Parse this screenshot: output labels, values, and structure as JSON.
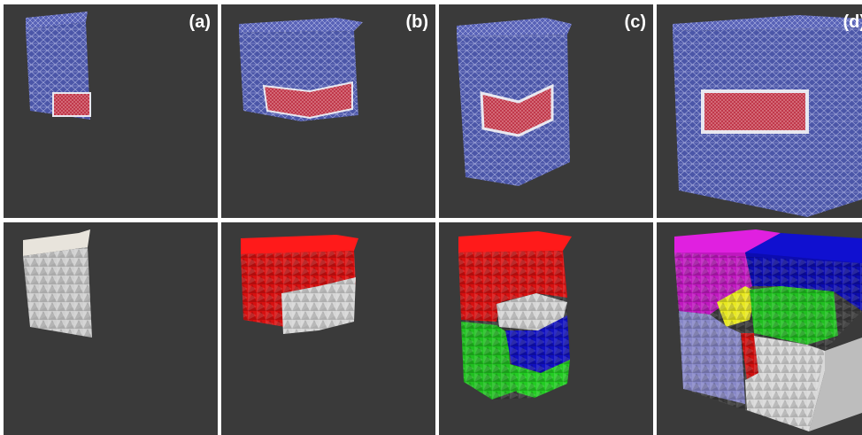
{
  "panels": [
    {
      "id": "a",
      "label": "(a)"
    },
    {
      "id": "b",
      "label": "(b)"
    },
    {
      "id": "c",
      "label": "(c)"
    },
    {
      "id": "d",
      "label": "(d)"
    }
  ],
  "colors": {
    "background": "#3a3a3a",
    "separator": "#ffffff",
    "mesh_blue": "#4b56a8",
    "mesh_red": "#c0384a",
    "part_red": "#e01010",
    "part_green": "#22cc22",
    "part_blue": "#1010c0",
    "part_magenta": "#d020d0",
    "part_yellow": "#e0e020",
    "part_lavender": "#8c8cc8",
    "part_white": "#d8d8d8"
  }
}
